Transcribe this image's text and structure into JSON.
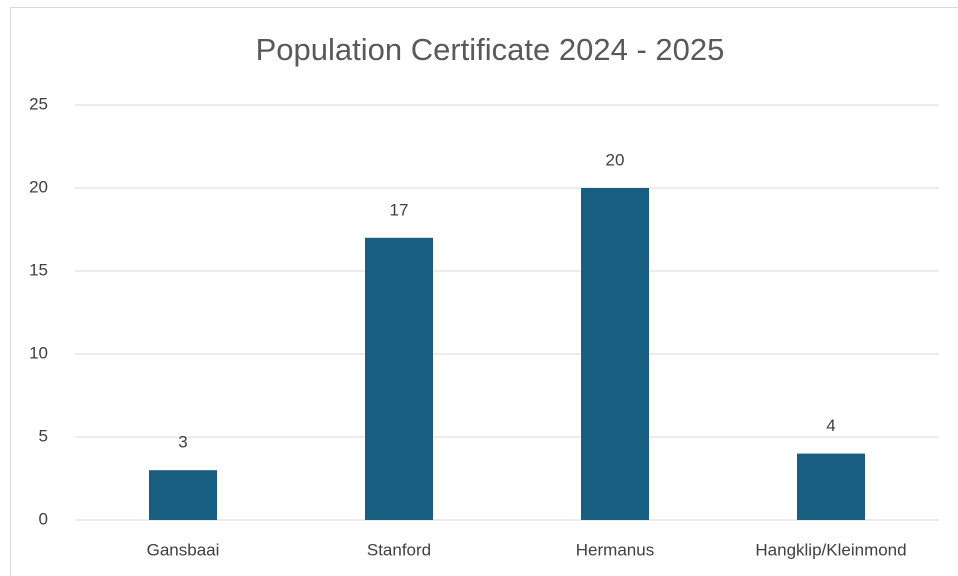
{
  "chart_data": {
    "type": "bar",
    "title": "Population Certificate 2024 - 2025",
    "categories": [
      "Gansbaai",
      "Stanford",
      "Hermanus",
      "Hangklip/Kleinmond"
    ],
    "values": [
      3,
      17,
      20,
      4
    ],
    "color": "#175e81",
    "ylim": [
      0,
      25
    ],
    "yticks": [
      0,
      5,
      10,
      15,
      20,
      25
    ],
    "grid": true
  }
}
